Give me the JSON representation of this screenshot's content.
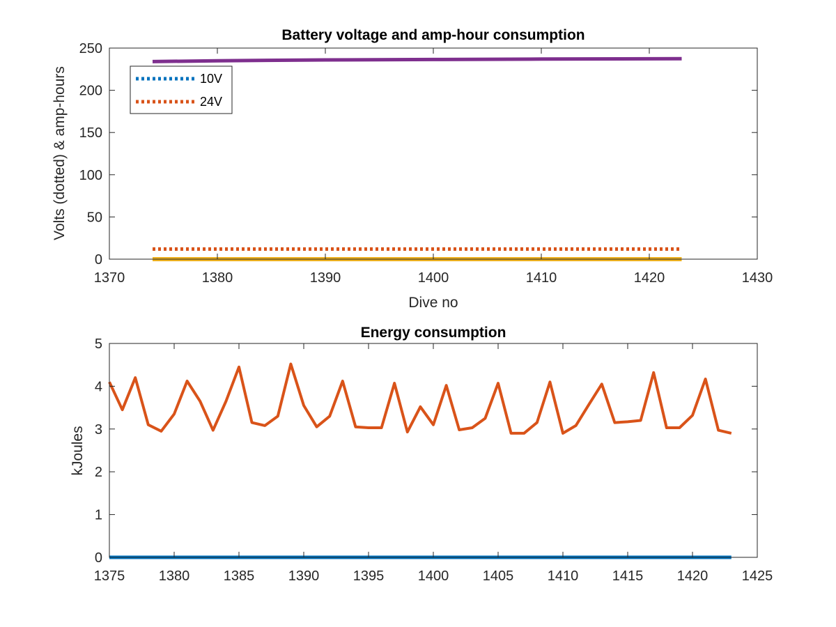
{
  "chart_data": [
    {
      "type": "line",
      "title": "Battery voltage and amp-hour consumption",
      "xlabel": "Dive no",
      "ylabel": "Volts (dotted) & amp-hours",
      "xlim": [
        1370,
        1430
      ],
      "ylim": [
        0,
        250
      ],
      "xticks": [
        "1370",
        "1380",
        "1390",
        "1400",
        "1410",
        "1420",
        "1430"
      ],
      "yticks": [
        "0",
        "50",
        "100",
        "150",
        "200",
        "250"
      ],
      "grid": false,
      "legend": {
        "location": "top-left",
        "entries": [
          "10V",
          "24V"
        ]
      },
      "series": [
        {
          "name": "10V",
          "style": "dotted",
          "color": "#0072BD",
          "x": [
            1374,
            1423
          ],
          "values": [
            0,
            0
          ]
        },
        {
          "name": "24V",
          "style": "dotted",
          "color": "#D95319",
          "x": [
            1374,
            1423
          ],
          "values": [
            12,
            12
          ]
        },
        {
          "style": "solid",
          "color": "#EDB120",
          "x": [
            1374,
            1423
          ],
          "values": [
            0,
            0
          ]
        },
        {
          "style": "solid",
          "color": "#7E2F8E",
          "x": [
            1374,
            1380,
            1390,
            1400,
            1410,
            1423
          ],
          "values": [
            234,
            235,
            236,
            236.5,
            237,
            237.5
          ]
        }
      ]
    },
    {
      "type": "line",
      "title": "Energy consumption",
      "xlabel": "",
      "ylabel": "kJoules",
      "xlim": [
        1375,
        1425
      ],
      "ylim": [
        0,
        5
      ],
      "xticks": [
        "1375",
        "1380",
        "1385",
        "1390",
        "1395",
        "1400",
        "1405",
        "1410",
        "1415",
        "1420",
        "1425"
      ],
      "yticks": [
        "0",
        "1",
        "2",
        "3",
        "4",
        "5"
      ],
      "grid": false,
      "series": [
        {
          "style": "solid",
          "color": "#0072BD",
          "x": [
            1375,
            1423
          ],
          "values": [
            0,
            0
          ]
        },
        {
          "style": "solid",
          "color": "#D95319",
          "x": [
            1375,
            1376,
            1377,
            1378,
            1379,
            1380,
            1381,
            1382,
            1383,
            1384,
            1385,
            1386,
            1387,
            1388,
            1389,
            1390,
            1391,
            1392,
            1393,
            1394,
            1395,
            1396,
            1397,
            1398,
            1399,
            1400,
            1401,
            1402,
            1403,
            1404,
            1405,
            1406,
            1407,
            1408,
            1409,
            1410,
            1411,
            1412,
            1413,
            1414,
            1415,
            1416,
            1417,
            1418,
            1419,
            1420,
            1421,
            1422,
            1423
          ],
          "values": [
            4.1,
            3.45,
            4.2,
            3.1,
            2.95,
            3.35,
            4.12,
            3.65,
            2.97,
            3.65,
            4.45,
            3.15,
            3.08,
            3.3,
            4.52,
            3.55,
            3.05,
            3.3,
            4.12,
            3.05,
            3.03,
            3.03,
            4.07,
            2.93,
            3.52,
            3.1,
            4.02,
            2.98,
            3.03,
            3.25,
            4.07,
            2.9,
            2.9,
            3.15,
            4.1,
            2.9,
            3.08,
            3.57,
            4.05,
            3.15,
            3.17,
            3.2,
            4.32,
            3.03,
            3.03,
            3.32,
            4.17,
            2.97,
            2.9
          ]
        }
      ]
    }
  ]
}
